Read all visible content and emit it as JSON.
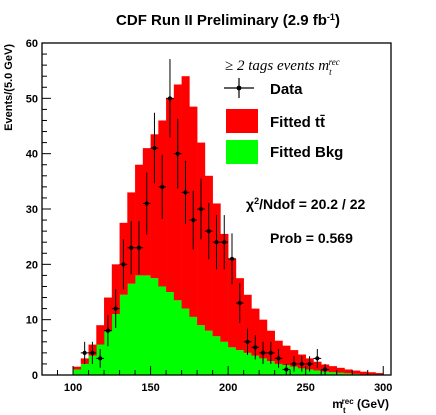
{
  "chart_data": {
    "type": "bar",
    "title_main": "CDF Run II Preliminary (2.9 fb",
    "title_sup": "-1",
    "title_close": ")",
    "xlabel_main": "m",
    "xlabel_sub": "t",
    "xlabel_sup": "rec",
    "xlabel_unit": " (GeV)",
    "ylabel": "Events/(5.0 GeV)",
    "xlim": [
      80,
      305
    ],
    "ylim": [
      0,
      60
    ],
    "x_ticks": [
      100,
      150,
      200,
      250,
      300
    ],
    "y_ticks": [
      0,
      10,
      20,
      30,
      40,
      50,
      60
    ],
    "bin_width": 5,
    "bin_edges_start": 100,
    "colors": {
      "ttbar": "#ff0000",
      "bkg": "#00ff00",
      "data": "#000000"
    },
    "series": [
      {
        "name": "Fitted Bkg",
        "values": [
          1.0,
          2.0,
          3.5,
          5.5,
          8.0,
          11.0,
          14.5,
          16.5,
          18.0,
          18.0,
          17.5,
          16.0,
          15.0,
          13.5,
          12.0,
          10.5,
          9.0,
          8.0,
          7.0,
          6.0,
          5.0,
          4.5,
          4.0,
          3.5,
          3.0,
          2.5,
          2.0,
          1.8,
          1.5,
          1.2,
          1.0,
          0.8,
          0.6,
          0.5,
          0.4,
          0.3,
          0.2,
          0.1,
          0.1,
          0.05
        ]
      },
      {
        "name": "Fitted tt̄",
        "values": [
          0.5,
          1.0,
          2.0,
          3.5,
          6.0,
          9.0,
          13.0,
          16.5,
          20.0,
          23.0,
          26.0,
          30.0,
          35.0,
          39.0,
          42.0,
          38.0,
          33.0,
          28.0,
          24.0,
          19.5,
          16.0,
          13.0,
          10.5,
          8.5,
          7.0,
          5.5,
          4.2,
          3.5,
          3.0,
          2.5,
          2.0,
          1.6,
          1.3,
          1.1,
          0.9,
          0.7,
          0.6,
          0.5,
          0.4,
          0.3
        ]
      }
    ],
    "data_points": {
      "name": "Data",
      "x": [
        107.5,
        112.5,
        117.5,
        122.5,
        127.5,
        132.5,
        137.5,
        142.5,
        147.5,
        152.5,
        157.5,
        162.5,
        167.5,
        172.5,
        177.5,
        182.5,
        187.5,
        192.5,
        197.5,
        202.5,
        207.5,
        212.5,
        217.5,
        222.5,
        227.5,
        232.5,
        237.5,
        242.5,
        247.5,
        252.5,
        257.5,
        262.5
      ],
      "y": [
        4,
        4,
        3,
        8,
        12,
        20,
        23,
        23,
        31,
        41,
        34,
        50,
        40,
        33,
        28,
        30,
        26,
        24,
        24,
        21,
        13,
        6,
        5,
        4,
        4,
        3,
        1,
        2,
        2,
        2,
        3,
        1
      ],
      "err": [
        2.0,
        2.0,
        1.7,
        2.8,
        3.5,
        4.5,
        4.8,
        4.8,
        5.6,
        6.4,
        5.8,
        7.1,
        6.3,
        5.7,
        5.3,
        5.5,
        5.1,
        4.9,
        4.9,
        4.6,
        3.6,
        2.4,
        2.2,
        2.0,
        2.0,
        1.7,
        1.0,
        1.4,
        1.4,
        1.4,
        1.7,
        1.0
      ]
    },
    "legend": {
      "placement": "top-right",
      "header_prefix": "≥ 2 tags events m",
      "header_sub": "t",
      "header_sup": "rec",
      "entries": [
        {
          "label": "Data",
          "style": "marker"
        },
        {
          "label": "Fitted tt̄",
          "style": "fill-ttbar"
        },
        {
          "label": "Fitted Bkg",
          "style": "fill-bkg"
        }
      ]
    },
    "annotations": {
      "chi2_prefix": "χ",
      "chi2_sup": "2",
      "chi2_value": "/Ndof = 20.2 / 22",
      "prob": "Prob = 0.569"
    }
  }
}
